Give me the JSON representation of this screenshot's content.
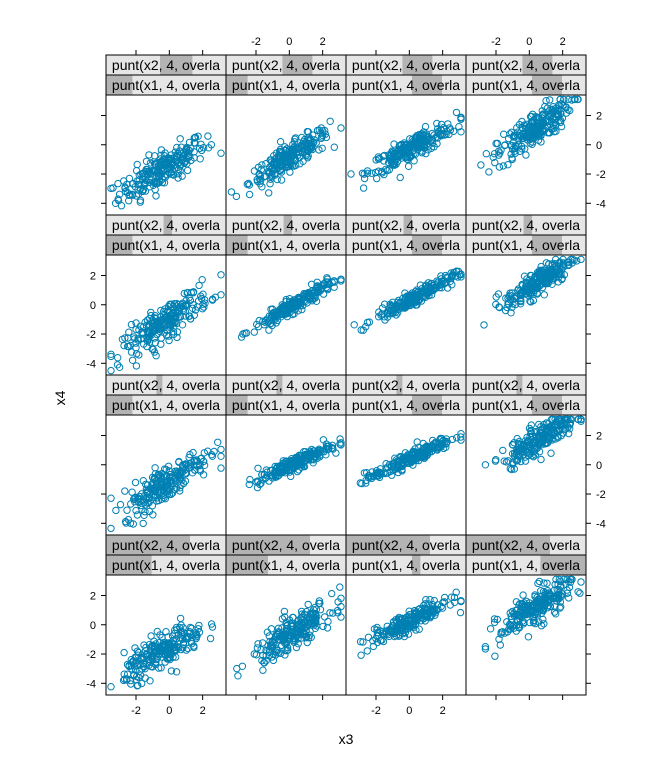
{
  "chart_data": {
    "type": "scatter",
    "layout": "lattice 4x4 conditioned panels",
    "xlabel": "x3",
    "ylabel": "x4",
    "strip_prefix_x2": "punt(x2, 4, overla",
    "strip_prefix_x1": "punt(x1, 4, overla",
    "x_ticks": [
      -2,
      0,
      2
    ],
    "y_ticks": [
      -4,
      -2,
      0,
      2
    ],
    "xlim": [
      -3.8,
      3.4
    ],
    "ylim": [
      -4.8,
      3.4
    ],
    "point_color": "#0080b3",
    "strip_bg": "#e6e6e6",
    "strip_shade": "#b3b3b3",
    "panels": [
      {
        "row": 1,
        "col": 1,
        "x2_shade": [
          0.45,
          0.72
        ],
        "x1_shade": [
          0.0,
          0.22
        ],
        "x_center": -0.4,
        "x_sd": 1.3,
        "slope": 0.65,
        "intercept": -1.4,
        "noise": 0.6
      },
      {
        "row": 1,
        "col": 2,
        "x2_shade": [
          0.47,
          0.72
        ],
        "x1_shade": [
          0.0,
          0.18
        ],
        "x_center": 0.0,
        "x_sd": 1.2,
        "slope": 0.7,
        "intercept": -0.9,
        "noise": 0.45
      },
      {
        "row": 1,
        "col": 3,
        "x2_shade": [
          0.47,
          0.72
        ],
        "x1_shade": [
          0.55,
          0.8
        ],
        "x_center": 0.2,
        "x_sd": 1.3,
        "slope": 0.6,
        "intercept": -0.3,
        "noise": 0.4
      },
      {
        "row": 1,
        "col": 4,
        "x2_shade": [
          0.47,
          0.72
        ],
        "x1_shade": [
          0.55,
          0.8
        ],
        "x_center": 0.3,
        "x_sd": 1.1,
        "slope": 0.8,
        "intercept": 0.8,
        "noise": 0.6
      },
      {
        "row": 2,
        "col": 1,
        "x2_shade": [
          0.48,
          0.55
        ],
        "x1_shade": [
          0.0,
          0.22
        ],
        "x_center": -0.2,
        "x_sd": 1.3,
        "slope": 0.75,
        "intercept": -1.0,
        "noise": 0.6
      },
      {
        "row": 2,
        "col": 2,
        "x2_shade": [
          0.48,
          0.55
        ],
        "x1_shade": [
          0.0,
          0.18
        ],
        "x_center": 0.3,
        "x_sd": 1.2,
        "slope": 0.65,
        "intercept": -0.2,
        "noise": 0.25
      },
      {
        "row": 2,
        "col": 3,
        "x2_shade": [
          0.48,
          0.55
        ],
        "x1_shade": [
          0.55,
          0.8
        ],
        "x_center": 0.3,
        "x_sd": 1.2,
        "slope": 0.6,
        "intercept": 0.3,
        "noise": 0.25
      },
      {
        "row": 2,
        "col": 4,
        "x2_shade": [
          0.48,
          0.55
        ],
        "x1_shade": [
          0.55,
          0.8
        ],
        "x_center": 0.6,
        "x_sd": 1.0,
        "slope": 0.7,
        "intercept": 1.2,
        "noise": 0.45
      },
      {
        "row": 3,
        "col": 1,
        "x2_shade": [
          0.42,
          0.47
        ],
        "x1_shade": [
          0.0,
          0.22
        ],
        "x_center": -0.2,
        "x_sd": 1.3,
        "slope": 0.7,
        "intercept": -1.1,
        "noise": 0.6
      },
      {
        "row": 3,
        "col": 2,
        "x2_shade": [
          0.42,
          0.47
        ],
        "x1_shade": [
          0.0,
          0.18
        ],
        "x_center": 0.3,
        "x_sd": 1.1,
        "slope": 0.55,
        "intercept": -0.1,
        "noise": 0.25
      },
      {
        "row": 3,
        "col": 3,
        "x2_shade": [
          0.42,
          0.47
        ],
        "x1_shade": [
          0.55,
          0.8
        ],
        "x_center": 0.0,
        "x_sd": 1.3,
        "slope": 0.55,
        "intercept": 0.4,
        "noise": 0.25
      },
      {
        "row": 3,
        "col": 4,
        "x2_shade": [
          0.42,
          0.47
        ],
        "x1_shade": [
          0.55,
          0.8
        ],
        "x_center": 0.6,
        "x_sd": 1.1,
        "slope": 0.7,
        "intercept": 1.4,
        "noise": 0.5
      },
      {
        "row": 4,
        "col": 1,
        "x2_shade": [
          0.0,
          0.7
        ],
        "x1_shade": [
          0.0,
          0.38
        ],
        "x_center": -0.3,
        "x_sd": 1.2,
        "slope": 0.6,
        "intercept": -1.6,
        "noise": 0.6
      },
      {
        "row": 4,
        "col": 2,
        "x2_shade": [
          0.0,
          0.7
        ],
        "x1_shade": [
          0.0,
          0.35
        ],
        "x_center": 0.2,
        "x_sd": 1.2,
        "slope": 0.7,
        "intercept": -0.7,
        "noise": 0.55
      },
      {
        "row": 4,
        "col": 3,
        "x2_shade": [
          0.0,
          0.7
        ],
        "x1_shade": [
          0.55,
          0.62
        ],
        "x_center": 0.0,
        "x_sd": 1.2,
        "slope": 0.55,
        "intercept": 0.2,
        "noise": 0.35
      },
      {
        "row": 4,
        "col": 4,
        "x2_shade": [
          0.0,
          0.7
        ],
        "x1_shade": [
          0.62,
          1.0
        ],
        "x_center": 0.4,
        "x_sd": 1.1,
        "slope": 0.7,
        "intercept": 0.9,
        "noise": 0.6
      }
    ],
    "points_per_panel": 220
  }
}
